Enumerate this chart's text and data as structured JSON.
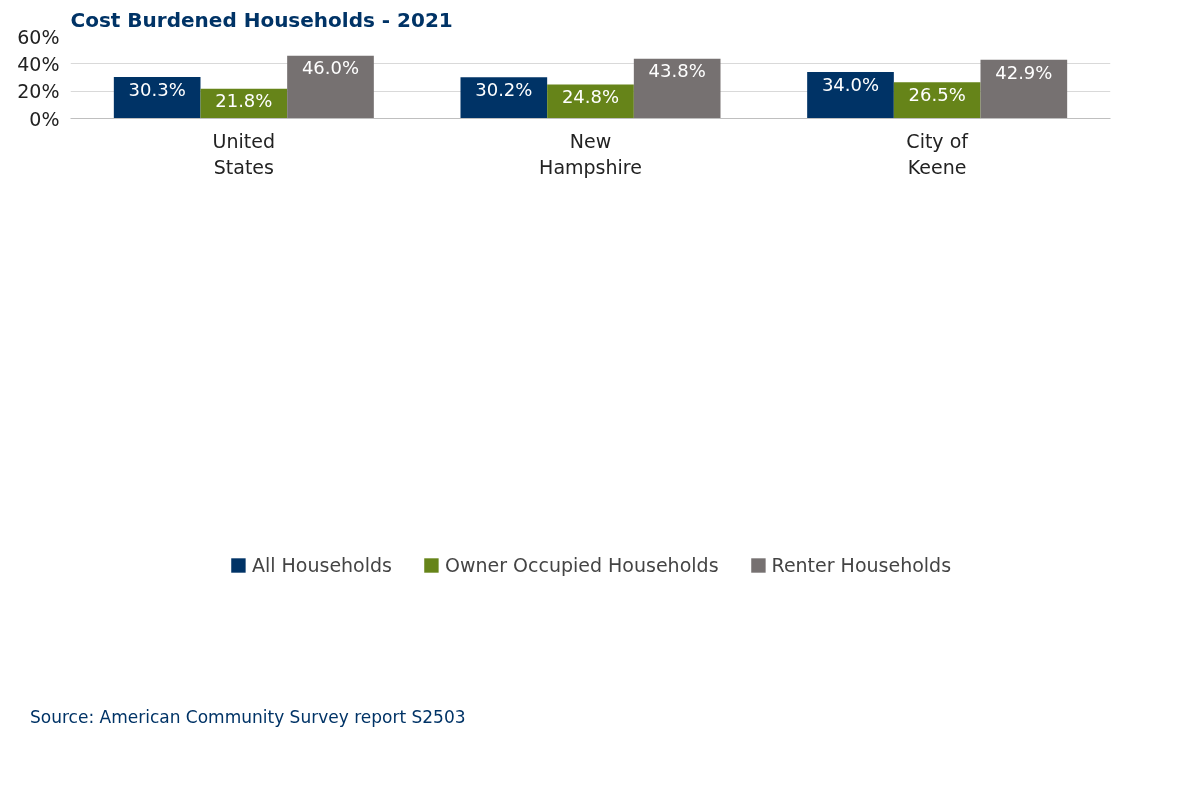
{
  "chart_data": {
    "type": "bar",
    "title": "Cost Burdened Households - 2021",
    "categories": [
      "United States",
      "New Hampshire",
      "City of Keene"
    ],
    "series": [
      {
        "name": "All Households",
        "color": "#003366",
        "values": [
          30.3,
          30.2,
          34.0
        ],
        "value_labels": [
          "30.3%",
          "30.2%",
          "34.0%"
        ]
      },
      {
        "name": "Owner Occupied Households",
        "color": "#668419",
        "values": [
          21.8,
          24.8,
          26.5
        ],
        "value_labels": [
          "21.8%",
          "24.8%",
          "26.5%"
        ]
      },
      {
        "name": "Renter Households",
        "color": "#767171",
        "values": [
          46.0,
          43.8,
          42.9
        ],
        "value_labels": [
          "46.0%",
          "43.8%",
          "42.9%"
        ]
      }
    ],
    "ylim": [
      0,
      60
    ],
    "yticks": [
      {
        "value": 0,
        "label": "0%"
      },
      {
        "value": 20,
        "label": "20%"
      },
      {
        "value": 40,
        "label": "40%"
      },
      {
        "value": 60,
        "label": "60%"
      }
    ],
    "grid": "y",
    "legend": "bottom",
    "annotations": [
      "Source: American Community Survey report S2503"
    ]
  }
}
